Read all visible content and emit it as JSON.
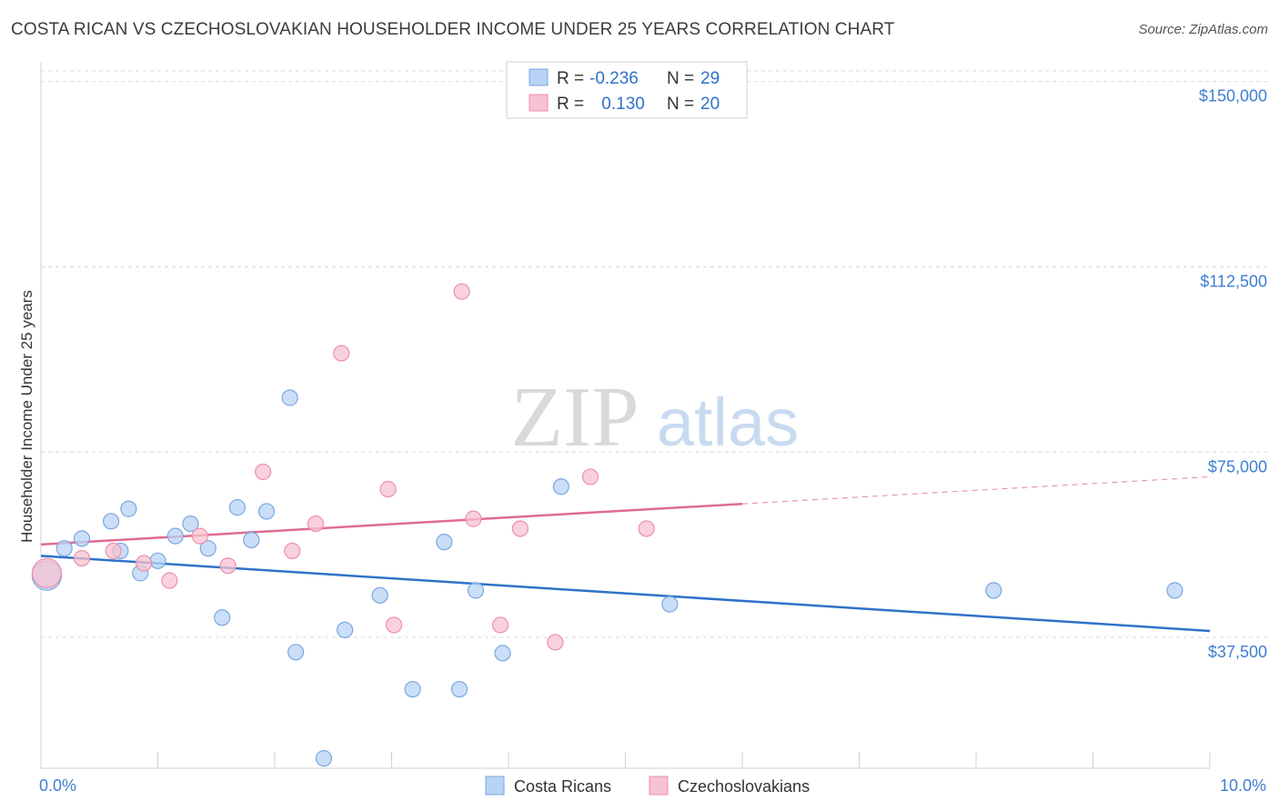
{
  "title": "COSTA RICAN VS CZECHOSLOVAKIAN HOUSEHOLDER INCOME UNDER 25 YEARS CORRELATION CHART",
  "source": "Source: ZipAtlas.com",
  "watermark": {
    "zip": "ZIP",
    "atlas": "atlas"
  },
  "colors": {
    "blue_fill": "#b8d3f5",
    "blue_stroke": "#7aa7e0",
    "blue_line": "#2f72c9",
    "pink_fill": "#f7c2d2",
    "pink_stroke": "#ec8fad",
    "pink_line": "#e06b93",
    "axis_text": "#3f7fd0",
    "grid": "#d9d9d9"
  },
  "legend": {
    "rows": [
      {
        "r_label": "R = ",
        "r_value": "-0.236",
        "n_label": "N = ",
        "n_value": "29"
      },
      {
        "r_label": "R = ",
        "r_value": " 0.130",
        "n_label": "N = ",
        "n_value": "20"
      }
    ]
  },
  "bottom_legend": [
    "Costa Ricans",
    "Czechoslovakians"
  ],
  "chart_data": {
    "type": "scatter",
    "title": "COSTA RICAN VS CZECHOSLOVAKIAN HOUSEHOLDER INCOME UNDER 25 YEARS CORRELATION CHART",
    "xlabel": "",
    "ylabel": "Householder Income Under 25 years",
    "xlim": [
      0,
      10
    ],
    "ylim": [
      11000,
      154000
    ],
    "x_tick_labels": [
      {
        "value": 0,
        "label": "0.0%"
      },
      {
        "value": 10,
        "label": "10.0%"
      }
    ],
    "y_ticks": [
      {
        "value": 37500,
        "label": "$37,500"
      },
      {
        "value": 75000,
        "label": "$75,000"
      },
      {
        "value": 112500,
        "label": "$112,500"
      },
      {
        "value": 150000,
        "label": "$150,000"
      }
    ],
    "grid": "horizontal dashed",
    "legend_position": "top-center",
    "series": [
      {
        "name": "Costa Ricans",
        "r": -0.236,
        "n": 29,
        "points": [
          {
            "x": 0.05,
            "y": 50000,
            "big": true
          },
          {
            "x": 0.2,
            "y": 55500
          },
          {
            "x": 0.35,
            "y": 57500
          },
          {
            "x": 0.68,
            "y": 55000
          },
          {
            "x": 0.6,
            "y": 61000
          },
          {
            "x": 0.75,
            "y": 63500
          },
          {
            "x": 0.85,
            "y": 50500
          },
          {
            "x": 1.0,
            "y": 53000
          },
          {
            "x": 1.15,
            "y": 58000
          },
          {
            "x": 1.28,
            "y": 60500
          },
          {
            "x": 1.43,
            "y": 55500
          },
          {
            "x": 1.55,
            "y": 41500
          },
          {
            "x": 1.68,
            "y": 63800
          },
          {
            "x": 1.8,
            "y": 57200
          },
          {
            "x": 1.93,
            "y": 63000
          },
          {
            "x": 2.13,
            "y": 86000
          },
          {
            "x": 2.18,
            "y": 34500
          },
          {
            "x": 2.6,
            "y": 39000
          },
          {
            "x": 2.9,
            "y": 46000
          },
          {
            "x": 3.18,
            "y": 27000
          },
          {
            "x": 3.45,
            "y": 56800
          },
          {
            "x": 3.58,
            "y": 27000
          },
          {
            "x": 3.72,
            "y": 47000
          },
          {
            "x": 3.95,
            "y": 34300
          },
          {
            "x": 4.45,
            "y": 68000
          },
          {
            "x": 5.38,
            "y": 44200
          },
          {
            "x": 2.42,
            "y": 13000
          },
          {
            "x": 8.15,
            "y": 47000
          },
          {
            "x": 9.7,
            "y": 47000
          }
        ],
        "trend": {
          "x": [
            0,
            10
          ],
          "y": [
            54000,
            38800
          ],
          "dashed_from": null
        }
      },
      {
        "name": "Czechoslovakians",
        "r": 0.13,
        "n": 20,
        "points": [
          {
            "x": 0.05,
            "y": 50500,
            "big": true
          },
          {
            "x": 0.35,
            "y": 53500
          },
          {
            "x": 0.62,
            "y": 55000
          },
          {
            "x": 0.88,
            "y": 52500
          },
          {
            "x": 1.1,
            "y": 49000
          },
          {
            "x": 1.36,
            "y": 58000
          },
          {
            "x": 1.6,
            "y": 52000
          },
          {
            "x": 1.9,
            "y": 71000
          },
          {
            "x": 2.15,
            "y": 55000
          },
          {
            "x": 2.35,
            "y": 60500
          },
          {
            "x": 2.57,
            "y": 95000
          },
          {
            "x": 2.97,
            "y": 67500
          },
          {
            "x": 3.02,
            "y": 40000
          },
          {
            "x": 3.6,
            "y": 107500
          },
          {
            "x": 3.7,
            "y": 61500
          },
          {
            "x": 3.93,
            "y": 40000
          },
          {
            "x": 4.1,
            "y": 59500
          },
          {
            "x": 4.4,
            "y": 36500
          },
          {
            "x": 4.7,
            "y": 70000
          },
          {
            "x": 5.18,
            "y": 59500
          }
        ],
        "trend": {
          "x": [
            0,
            10
          ],
          "y": [
            56300,
            70000
          ],
          "dashed_from": 6
        }
      }
    ]
  }
}
